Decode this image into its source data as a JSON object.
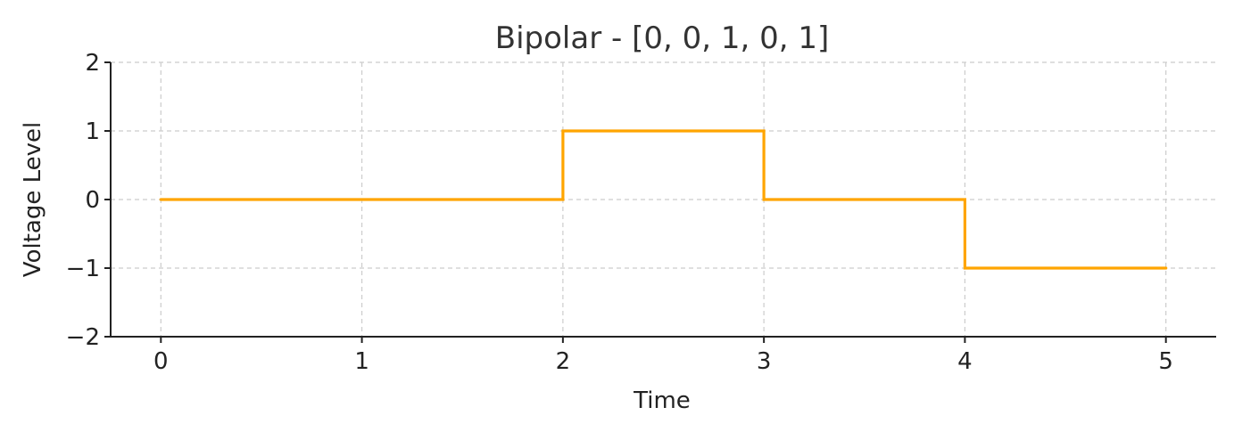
{
  "chart_data": {
    "type": "line",
    "step": "post",
    "title": "Bipolar - [0, 0, 1, 0, 1]",
    "xlabel": "Time",
    "ylabel": "Voltage Level",
    "xlim": [
      -0.25,
      5.25
    ],
    "ylim": [
      -2,
      2
    ],
    "xticks": [
      0,
      1,
      2,
      3,
      4,
      5
    ],
    "xtick_labels": [
      "0",
      "1",
      "2",
      "3",
      "4",
      "5"
    ],
    "yticks": [
      -2,
      -1,
      0,
      1,
      2
    ],
    "ytick_labels": [
      "−2",
      "−1",
      "0",
      "1",
      "2"
    ],
    "grid": true,
    "series": [
      {
        "x": [
          0,
          1,
          2,
          3,
          4,
          5
        ],
        "values": [
          0,
          0,
          1,
          0,
          -1,
          -1
        ],
        "color": "#FFA500"
      }
    ]
  }
}
